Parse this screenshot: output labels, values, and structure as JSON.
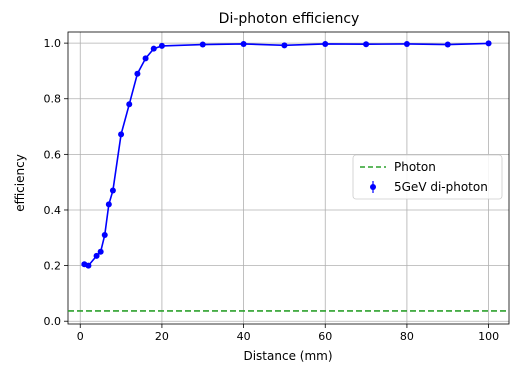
{
  "chart_data": {
    "type": "line",
    "title": "Di-photon efficiency",
    "xlabel": "Distance (mm)",
    "ylabel": "efficiency",
    "xlim": [
      -3,
      105
    ],
    "ylim": [
      -0.01,
      1.04
    ],
    "xticks": [
      0,
      20,
      40,
      60,
      80,
      100
    ],
    "yticks": [
      0.0,
      0.2,
      0.4,
      0.6,
      0.8,
      1.0
    ],
    "ytick_labels": [
      "0.0",
      "0.2",
      "0.4",
      "0.6",
      "0.8",
      "1.0"
    ],
    "grid": true,
    "legend_position": "center-right",
    "series": [
      {
        "name": "5GeV di-photon",
        "style": "line-errorbar-markers",
        "color": "#0000ff",
        "x": [
          1,
          2,
          4,
          5,
          6,
          7,
          8,
          10,
          12,
          14,
          16,
          18,
          20,
          30,
          40,
          50,
          60,
          70,
          80,
          90,
          100
        ],
        "y": [
          0.205,
          0.2,
          0.235,
          0.25,
          0.31,
          0.42,
          0.47,
          0.672,
          0.78,
          0.89,
          0.945,
          0.98,
          0.99,
          0.995,
          0.997,
          0.992,
          0.997,
          0.996,
          0.997,
          0.995,
          0.999
        ]
      },
      {
        "name": "Photon",
        "style": "dashed-hline",
        "color": "#2ca02c",
        "y": 0.037
      }
    ]
  }
}
